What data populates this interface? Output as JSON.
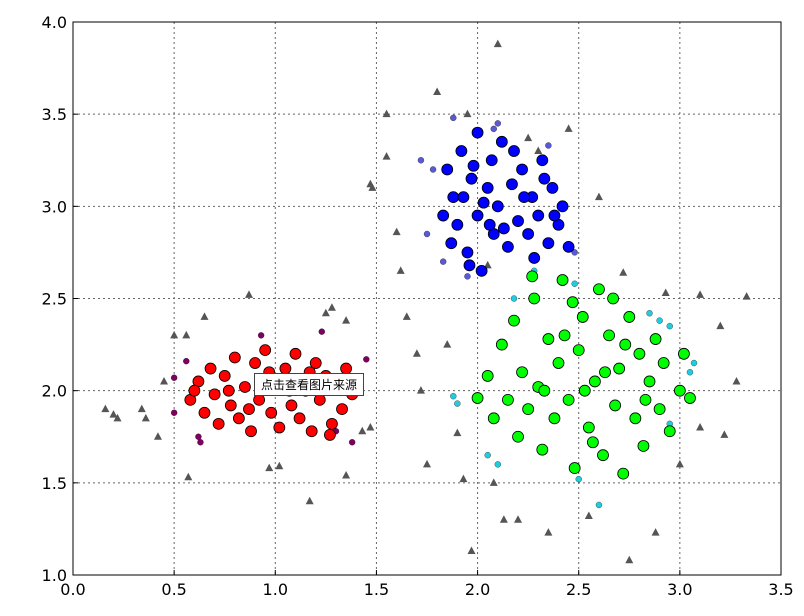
{
  "chart_data": {
    "type": "scatter",
    "xlim": [
      0,
      3.5
    ],
    "ylim": [
      1.0,
      4.0
    ],
    "xticks": [
      {
        "value": 0,
        "label": "0.0"
      },
      {
        "value": 0.5,
        "label": "0.5"
      },
      {
        "value": 1,
        "label": "1.0"
      },
      {
        "value": 1.5,
        "label": "1.5"
      },
      {
        "value": 2,
        "label": "2.0"
      },
      {
        "value": 2.5,
        "label": "2.5"
      },
      {
        "value": 3,
        "label": "3.0"
      },
      {
        "value": 3.5,
        "label": "3.5"
      }
    ],
    "yticks": [
      {
        "value": 1,
        "label": "1.0"
      },
      {
        "value": 1.5,
        "label": "1.5"
      },
      {
        "value": 2,
        "label": "2.0"
      },
      {
        "value": 2.5,
        "label": "2.5"
      },
      {
        "value": 3,
        "label": "3.0"
      },
      {
        "value": 3.5,
        "label": "3.5"
      },
      {
        "value": 4,
        "label": "4.0"
      }
    ],
    "grid": true,
    "annotation": "点击查看图片来源",
    "series": [
      {
        "color": "#555555",
        "marker": "triangle",
        "x": [
          0.16,
          0.2,
          0.22,
          0.34,
          0.36,
          0.42,
          0.45,
          0.5,
          0.56,
          0.57,
          0.65,
          0.87,
          0.97,
          1.02,
          1.17,
          1.25,
          1.28,
          1.35,
          1.35,
          1.43,
          1.47,
          1.48,
          1.47,
          1.55,
          1.55,
          1.6,
          1.62,
          1.65,
          1.7,
          1.72,
          1.75,
          1.8,
          1.85,
          1.9,
          1.93,
          1.95,
          1.97,
          2.05,
          2.1,
          2.08,
          2.13,
          2.2,
          2.25,
          2.3,
          2.35,
          2.45,
          2.55,
          2.6,
          2.72,
          2.75,
          2.88,
          2.93,
          3.0,
          3.1,
          3.1,
          3.2,
          3.22,
          3.28,
          3.33
        ],
        "values": [
          1.9,
          1.87,
          1.85,
          1.9,
          1.85,
          1.75,
          2.05,
          2.3,
          2.3,
          1.53,
          2.4,
          2.52,
          1.58,
          1.59,
          1.4,
          2.42,
          2.45,
          2.38,
          1.54,
          1.78,
          1.8,
          3.1,
          3.12,
          3.5,
          3.27,
          2.86,
          2.65,
          2.4,
          2.2,
          2.0,
          1.6,
          3.62,
          2.25,
          1.77,
          1.52,
          3.5,
          1.13,
          2.68,
          3.88,
          1.5,
          1.3,
          1.3,
          3.37,
          3.3,
          1.23,
          3.42,
          1.32,
          3.05,
          2.64,
          1.08,
          1.23,
          2.53,
          1.6,
          2.52,
          1.8,
          2.35,
          1.76,
          2.05,
          2.51
        ]
      },
      {
        "color": "#800060",
        "marker": "small",
        "x": [
          0.5,
          0.5,
          0.56,
          0.62,
          0.63,
          0.93,
          1.23,
          1.3,
          1.38,
          1.45
        ],
        "values": [
          1.88,
          2.07,
          2.16,
          1.75,
          1.72,
          2.3,
          2.32,
          1.78,
          1.72,
          2.17
        ]
      },
      {
        "color": "#ff0000",
        "marker": "large",
        "x": [
          0.58,
          0.62,
          0.65,
          0.68,
          0.7,
          0.72,
          0.75,
          0.78,
          0.8,
          0.82,
          0.85,
          0.88,
          0.9,
          0.92,
          0.95,
          0.98,
          1.0,
          1.02,
          1.05,
          1.08,
          1.1,
          1.12,
          1.15,
          1.18,
          1.2,
          1.22,
          1.25,
          1.28,
          1.3,
          1.33,
          1.35,
          1.38,
          1.4,
          0.6,
          0.77,
          0.87,
          0.97,
          1.07,
          1.17,
          1.27
        ],
        "values": [
          1.95,
          2.05,
          1.88,
          2.12,
          1.98,
          1.82,
          2.08,
          1.92,
          2.18,
          1.85,
          2.02,
          1.78,
          2.15,
          1.95,
          2.22,
          1.88,
          2.05,
          1.8,
          2.12,
          1.92,
          2.2,
          1.85,
          2.0,
          1.78,
          2.15,
          1.95,
          2.08,
          1.82,
          2.02,
          1.9,
          2.12,
          1.98,
          2.05,
          2.0,
          2.0,
          1.9,
          2.1,
          2.0,
          2.1,
          1.76
        ]
      },
      {
        "color": "#5a5ad8",
        "marker": "small",
        "x": [
          1.72,
          1.78,
          1.75,
          1.83,
          1.88,
          2.08,
          2.35,
          2.48,
          1.95,
          2.1
        ],
        "values": [
          3.25,
          3.2,
          2.85,
          2.7,
          3.48,
          3.42,
          3.33,
          2.75,
          2.62,
          3.45
        ]
      },
      {
        "color": "#0000ff",
        "marker": "large",
        "x": [
          1.85,
          1.88,
          1.9,
          1.92,
          1.95,
          1.97,
          2.0,
          2.0,
          2.02,
          2.05,
          2.07,
          2.08,
          2.1,
          2.12,
          2.15,
          2.17,
          2.2,
          2.22,
          2.25,
          2.27,
          2.3,
          2.32,
          2.35,
          2.37,
          2.4,
          2.42,
          2.45,
          1.83,
          1.87,
          1.93,
          1.98,
          2.03,
          2.13,
          2.18,
          2.23,
          2.28,
          2.33,
          2.38,
          1.96,
          2.06
        ],
        "values": [
          3.2,
          3.05,
          2.9,
          3.3,
          2.75,
          3.15,
          3.4,
          2.95,
          2.65,
          3.1,
          3.25,
          2.85,
          3.0,
          3.35,
          2.78,
          3.12,
          2.92,
          3.2,
          2.85,
          3.05,
          2.95,
          3.25,
          2.8,
          3.1,
          2.9,
          3.0,
          2.78,
          2.95,
          2.8,
          3.05,
          3.22,
          3.02,
          2.88,
          3.3,
          3.05,
          2.72,
          3.15,
          2.95,
          2.68,
          2.9
        ]
      },
      {
        "color": "#22ccdd",
        "marker": "small",
        "x": [
          1.88,
          1.9,
          2.05,
          2.1,
          2.18,
          2.28,
          2.48,
          2.5,
          2.6,
          2.85,
          2.95,
          3.05,
          3.07,
          2.95,
          2.9
        ],
        "values": [
          1.97,
          1.93,
          1.65,
          1.6,
          2.5,
          2.65,
          2.58,
          1.52,
          1.38,
          2.42,
          1.82,
          2.1,
          2.15,
          2.35,
          2.38
        ]
      },
      {
        "color": "#00ff00",
        "marker": "large",
        "x": [
          2.0,
          2.05,
          2.08,
          2.12,
          2.15,
          2.18,
          2.2,
          2.22,
          2.25,
          2.28,
          2.3,
          2.32,
          2.35,
          2.38,
          2.4,
          2.42,
          2.45,
          2.48,
          2.5,
          2.52,
          2.55,
          2.58,
          2.6,
          2.62,
          2.65,
          2.68,
          2.7,
          2.72,
          2.75,
          2.78,
          2.8,
          2.82,
          2.85,
          2.88,
          2.9,
          2.92,
          2.95,
          3.0,
          3.02,
          3.05,
          2.27,
          2.33,
          2.43,
          2.53,
          2.63,
          2.73,
          2.83,
          2.57,
          2.47,
          2.67
        ],
        "values": [
          1.96,
          2.08,
          1.85,
          2.25,
          1.95,
          2.38,
          1.75,
          2.1,
          1.9,
          2.5,
          2.02,
          1.68,
          2.28,
          1.85,
          2.15,
          2.6,
          1.95,
          1.58,
          2.22,
          2.4,
          1.8,
          2.05,
          2.55,
          1.65,
          2.3,
          1.92,
          2.12,
          1.55,
          2.4,
          1.85,
          2.2,
          1.7,
          2.05,
          2.28,
          1.9,
          2.15,
          1.78,
          2.0,
          2.2,
          1.96,
          2.62,
          2.0,
          2.3,
          2.0,
          2.1,
          2.25,
          1.95,
          1.72,
          2.48,
          2.5
        ]
      }
    ]
  }
}
